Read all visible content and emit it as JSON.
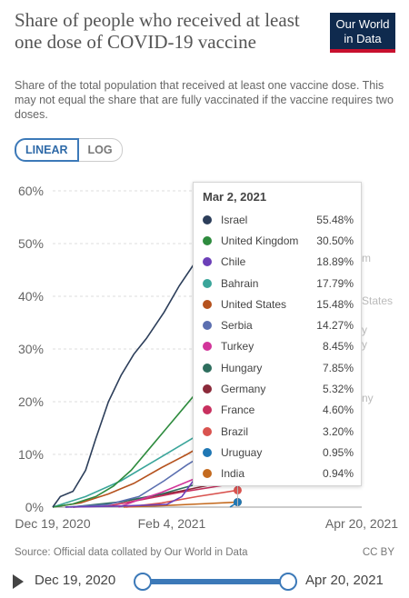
{
  "header": {
    "title": "Share of people who received at least one dose of COVID-19 vaccine",
    "subtitle": "Share of the total population that received at least one vaccine dose. This may not equal the share that are fully vaccinated if the vaccine requires two doses.",
    "logo_line1": "Our World",
    "logo_line2": "in Data"
  },
  "scale_tabs": {
    "linear": "LINEAR",
    "log": "LOG",
    "active": "linear"
  },
  "chart_data": {
    "type": "line",
    "y_ticks": [
      "60%",
      "50%",
      "40%",
      "30%",
      "20%",
      "10%",
      "0%"
    ],
    "x_ticks": [
      "Dec 19, 2020",
      "Feb 4, 2021",
      "Apr 20, 2021"
    ],
    "ylim": [
      0,
      60
    ],
    "xlim": [
      "2020-12-19",
      "2021-04-20"
    ],
    "grid": true,
    "series": [
      {
        "name": "Israel",
        "color": "#2c3e5a",
        "points": [
          [
            "2020-12-19",
            0
          ],
          [
            "2020-12-22",
            2
          ],
          [
            "2020-12-27",
            3
          ],
          [
            "2021-01-01",
            7
          ],
          [
            "2021-01-05",
            13
          ],
          [
            "2021-01-10",
            20
          ],
          [
            "2021-01-15",
            25
          ],
          [
            "2021-01-20",
            29
          ],
          [
            "2021-01-25",
            32
          ],
          [
            "2021-02-01",
            37
          ],
          [
            "2021-02-07",
            42
          ],
          [
            "2021-02-14",
            47
          ],
          [
            "2021-02-21",
            51
          ],
          [
            "2021-03-02",
            55.48
          ]
        ]
      },
      {
        "name": "United Kingdom",
        "color": "#2e8b3e",
        "points": [
          [
            "2020-12-19",
            0
          ],
          [
            "2020-12-27",
            0.6
          ],
          [
            "2021-01-05",
            2
          ],
          [
            "2021-01-12",
            4
          ],
          [
            "2021-01-19",
            7
          ],
          [
            "2021-01-26",
            11
          ],
          [
            "2021-02-02",
            15
          ],
          [
            "2021-02-09",
            19
          ],
          [
            "2021-02-16",
            23
          ],
          [
            "2021-02-23",
            27
          ],
          [
            "2021-03-02",
            30.5
          ]
        ]
      },
      {
        "name": "Chile",
        "color": "#6c3fb8",
        "points": [
          [
            "2020-12-24",
            0
          ],
          [
            "2021-01-15",
            0.2
          ],
          [
            "2021-02-02",
            0.5
          ],
          [
            "2021-02-08",
            2
          ],
          [
            "2021-02-14",
            6
          ],
          [
            "2021-02-20",
            11
          ],
          [
            "2021-02-26",
            16
          ],
          [
            "2021-03-02",
            18.89
          ]
        ]
      },
      {
        "name": "Bahrain",
        "color": "#3aa59a",
        "points": [
          [
            "2020-12-19",
            0
          ],
          [
            "2021-01-01",
            2
          ],
          [
            "2021-01-15",
            5
          ],
          [
            "2021-01-29",
            9
          ],
          [
            "2021-02-12",
            13
          ],
          [
            "2021-02-24",
            16
          ],
          [
            "2021-03-02",
            17.79
          ]
        ]
      },
      {
        "name": "United States",
        "color": "#b5521e",
        "points": [
          [
            "2020-12-19",
            0
          ],
          [
            "2020-12-30",
            0.8
          ],
          [
            "2021-01-10",
            2.5
          ],
          [
            "2021-01-20",
            4.5
          ],
          [
            "2021-01-31",
            7.5
          ],
          [
            "2021-02-10",
            10
          ],
          [
            "2021-02-20",
            12.8
          ],
          [
            "2021-03-02",
            15.48
          ]
        ]
      },
      {
        "name": "Serbia",
        "color": "#5b6fb0",
        "points": [
          [
            "2020-12-24",
            0
          ],
          [
            "2021-01-10",
            0.5
          ],
          [
            "2021-01-22",
            2
          ],
          [
            "2021-02-01",
            5
          ],
          [
            "2021-02-10",
            8
          ],
          [
            "2021-02-20",
            11
          ],
          [
            "2021-03-02",
            14.27
          ]
        ]
      },
      {
        "name": "Turkey",
        "color": "#d2359a",
        "points": [
          [
            "2021-01-14",
            0
          ],
          [
            "2021-01-21",
            1.2
          ],
          [
            "2021-01-31",
            2.8
          ],
          [
            "2021-02-10",
            4.8
          ],
          [
            "2021-02-20",
            6.8
          ],
          [
            "2021-03-02",
            8.45
          ]
        ]
      },
      {
        "name": "Hungary",
        "color": "#2e6e5e",
        "points": [
          [
            "2020-12-26",
            0
          ],
          [
            "2021-01-15",
            1
          ],
          [
            "2021-01-31",
            2.5
          ],
          [
            "2021-02-15",
            4.5
          ],
          [
            "2021-03-02",
            7.85
          ]
        ]
      },
      {
        "name": "Germany",
        "color": "#8b2a3a",
        "points": [
          [
            "2020-12-27",
            0
          ],
          [
            "2021-01-10",
            0.6
          ],
          [
            "2021-01-24",
            1.8
          ],
          [
            "2021-02-07",
            3
          ],
          [
            "2021-02-20",
            4.3
          ],
          [
            "2021-03-02",
            5.32
          ]
        ]
      },
      {
        "name": "France",
        "color": "#c8305f",
        "points": [
          [
            "2020-12-27",
            0
          ],
          [
            "2021-01-10",
            0.2
          ],
          [
            "2021-01-24",
            1.5
          ],
          [
            "2021-02-07",
            2.8
          ],
          [
            "2021-02-20",
            3.8
          ],
          [
            "2021-03-02",
            4.6
          ]
        ]
      },
      {
        "name": "Brazil",
        "color": "#d9534f",
        "points": [
          [
            "2021-01-17",
            0
          ],
          [
            "2021-01-31",
            0.8
          ],
          [
            "2021-02-14",
            2
          ],
          [
            "2021-03-02",
            3.2
          ]
        ]
      },
      {
        "name": "Uruguay",
        "color": "#1f77b4",
        "points": [
          [
            "2021-02-27",
            0
          ],
          [
            "2021-03-02",
            0.95
          ]
        ]
      },
      {
        "name": "India",
        "color": "#c46a1f",
        "points": [
          [
            "2021-01-16",
            0
          ],
          [
            "2021-02-01",
            0.3
          ],
          [
            "2021-02-15",
            0.6
          ],
          [
            "2021-03-02",
            0.94
          ]
        ]
      }
    ],
    "faded_edge_labels": [
      "Israel",
      "m",
      "States",
      "y",
      "y",
      "ny"
    ]
  },
  "tooltip": {
    "date": "Mar 2, 2021",
    "rows": [
      {
        "name": "Israel",
        "value": "55.48%",
        "color": "#2c3e5a"
      },
      {
        "name": "United Kingdom",
        "value": "30.50%",
        "color": "#2e8b3e"
      },
      {
        "name": "Chile",
        "value": "18.89%",
        "color": "#6c3fb8"
      },
      {
        "name": "Bahrain",
        "value": "17.79%",
        "color": "#3aa59a"
      },
      {
        "name": "United States",
        "value": "15.48%",
        "color": "#b5521e"
      },
      {
        "name": "Serbia",
        "value": "14.27%",
        "color": "#5b6fb0"
      },
      {
        "name": "Turkey",
        "value": "8.45%",
        "color": "#d2359a"
      },
      {
        "name": "Hungary",
        "value": "7.85%",
        "color": "#2e6e5e"
      },
      {
        "name": "Germany",
        "value": "5.32%",
        "color": "#8b2a3a"
      },
      {
        "name": "France",
        "value": "4.60%",
        "color": "#c8305f"
      },
      {
        "name": "Brazil",
        "value": "3.20%",
        "color": "#d9534f"
      },
      {
        "name": "Uruguay",
        "value": "0.95%",
        "color": "#1f77b4"
      },
      {
        "name": "India",
        "value": "0.94%",
        "color": "#c46a1f"
      }
    ]
  },
  "footer": {
    "source": "Source: Official data collated by Our World in Data",
    "license": "CC BY"
  },
  "timeline": {
    "start_label": "Dec 19, 2020",
    "end_label": "Apr 20, 2021",
    "start_fraction": 0,
    "end_fraction": 1
  }
}
